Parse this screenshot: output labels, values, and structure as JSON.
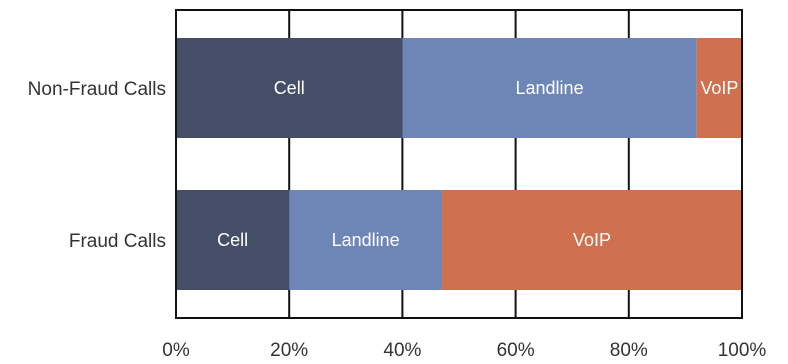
{
  "chart_data": {
    "type": "bar",
    "orientation": "horizontal",
    "stacked": true,
    "categories": [
      "Non-Fraud Calls",
      "Fraud Calls"
    ],
    "series": [
      {
        "name": "Cell",
        "color": "#444e66",
        "values": [
          40,
          20
        ]
      },
      {
        "name": "Landline",
        "color": "#6e86b6",
        "values": [
          52,
          27
        ]
      },
      {
        "name": "VoIP",
        "color": "#d1704f",
        "values": [
          8,
          53
        ]
      }
    ],
    "xlim": [
      0,
      100
    ],
    "x_ticks": [
      "0%",
      "20%",
      "40%",
      "60%",
      "80%",
      "100%"
    ],
    "grid": "vertical",
    "legend": "none",
    "title": "",
    "xlabel": "",
    "ylabel": ""
  }
}
